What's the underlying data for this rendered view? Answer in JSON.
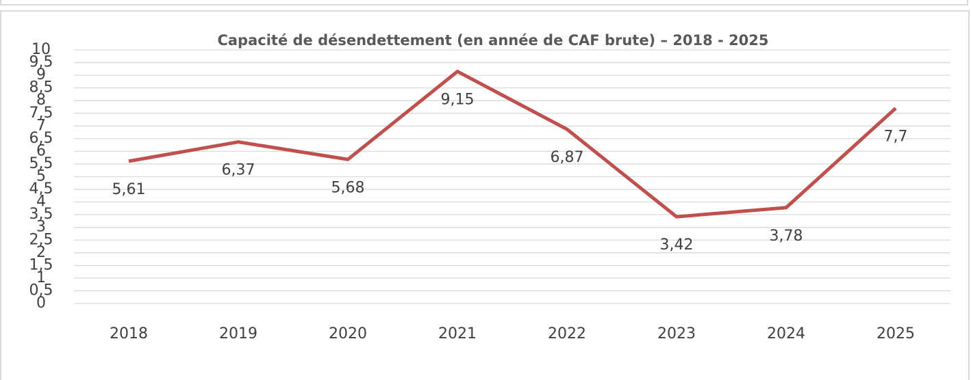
{
  "chart_data": {
    "type": "line",
    "title": "Capacité de désendettement (en année de CAF brute) – 2018 - 2025",
    "categories": [
      "2018",
      "2019",
      "2020",
      "2021",
      "2022",
      "2023",
      "2024",
      "2025"
    ],
    "series": [
      {
        "name": "Capacité de désendettement",
        "color": "#c0504d",
        "values": [
          5.61,
          6.37,
          5.68,
          9.15,
          6.87,
          3.42,
          3.78,
          7.7
        ],
        "value_labels": [
          "5,61",
          "6,37",
          "5,68",
          "9,15",
          "6,87",
          "3,42",
          "3,78",
          "7,7"
        ]
      }
    ],
    "ylim": [
      0,
      10
    ],
    "yticks": [
      0,
      {
        "value": 0.5,
        "label": "0,5"
      },
      1,
      {
        "value": 1.5,
        "label": "1,5"
      },
      2,
      {
        "value": 2.5,
        "label": "2,5"
      },
      3,
      {
        "value": 3.5,
        "label": "3,5"
      },
      4,
      {
        "value": 4.5,
        "label": "4,5"
      },
      5,
      {
        "value": 5.5,
        "label": "5,5"
      },
      6,
      {
        "value": 6.5,
        "label": "6,5"
      },
      7,
      {
        "value": 7.5,
        "label": "7,5"
      },
      8,
      {
        "value": 8.5,
        "label": "8,5"
      },
      9,
      {
        "value": 9.5,
        "label": "9,5"
      },
      10
    ],
    "grid": true
  }
}
